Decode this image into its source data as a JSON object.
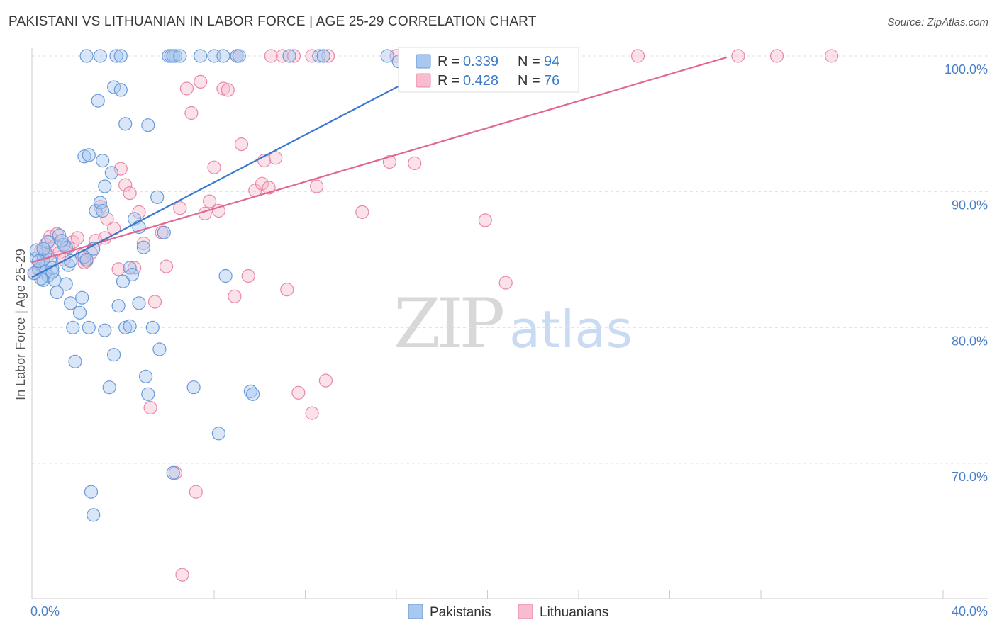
{
  "title": "PAKISTANI VS LITHUANIAN IN LABOR FORCE | AGE 25-29 CORRELATION CHART",
  "source": "Source: ZipAtlas.com",
  "watermark": {
    "zip": "ZIP",
    "atlas": "atlas"
  },
  "colors": {
    "blue_fill": "#a9c8f0",
    "blue_stroke": "#6a9ad8",
    "blue_line": "#3a78d0",
    "pink_fill": "#f7bccd",
    "pink_stroke": "#e888a8",
    "pink_line": "#e06890",
    "grid": "#e0e0e0",
    "axis_label": "#4a7fc8"
  },
  "legend": {
    "rows": [
      {
        "r_label": "R =",
        "r_value": "0.339",
        "n_label": "N =",
        "n_value": "94"
      },
      {
        "r_label": "R =",
        "r_value": "0.428",
        "n_label": "N =",
        "n_value": "76"
      }
    ]
  },
  "bottom_legend": [
    "Pakistanis",
    "Lithuanians"
  ],
  "chart_data": {
    "type": "scatter",
    "xlabel": "",
    "ylabel": "In Labor Force | Age 25-29",
    "xlim": [
      0,
      40
    ],
    "ylim": [
      60,
      100
    ],
    "x_tick_labels": [
      "0.0%",
      "40.0%"
    ],
    "y_tick_labels": [
      "100.0%",
      "90.0%",
      "80.0%",
      "70.0%"
    ],
    "y_ticks": [
      100,
      90,
      80,
      70
    ],
    "series": [
      {
        "name": "Pakistanis",
        "r": 0.339,
        "n": 94,
        "trend": {
          "x": [
            0.0,
            17.5
          ],
          "y": [
            83.7,
            99.0
          ]
        },
        "points": [
          [
            0.2,
            85.1
          ],
          [
            0.3,
            84.3
          ],
          [
            0.4,
            84.6
          ],
          [
            0.5,
            85.0
          ],
          [
            0.6,
            84.1
          ],
          [
            0.7,
            83.8
          ],
          [
            0.8,
            85.0
          ],
          [
            0.5,
            83.5
          ],
          [
            0.6,
            85.5
          ],
          [
            0.9,
            84.4
          ],
          [
            1.0,
            83.5
          ],
          [
            1.1,
            82.6
          ],
          [
            1.2,
            86.8
          ],
          [
            1.4,
            86.1
          ],
          [
            1.5,
            85.9
          ],
          [
            1.6,
            84.6
          ],
          [
            1.7,
            81.8
          ],
          [
            1.8,
            80.0
          ],
          [
            1.9,
            77.5
          ],
          [
            2.1,
            81.1
          ],
          [
            2.2,
            82.2
          ],
          [
            2.3,
            85.2
          ],
          [
            2.4,
            85.0
          ],
          [
            2.5,
            80.0
          ],
          [
            2.7,
            85.8
          ],
          [
            2.8,
            88.6
          ],
          [
            3.0,
            89.2
          ],
          [
            3.1,
            88.6
          ],
          [
            3.2,
            79.8
          ],
          [
            3.4,
            75.6
          ],
          [
            3.6,
            78.0
          ],
          [
            3.8,
            81.6
          ],
          [
            4.0,
            83.4
          ],
          [
            4.1,
            80.0
          ],
          [
            4.3,
            84.4
          ],
          [
            4.5,
            88.0
          ],
          [
            4.7,
            87.4
          ],
          [
            4.9,
            85.9
          ],
          [
            5.0,
            76.4
          ],
          [
            5.1,
            75.1
          ],
          [
            5.3,
            80.0
          ],
          [
            5.5,
            89.6
          ],
          [
            5.6,
            78.4
          ],
          [
            5.8,
            87.0
          ],
          [
            6.2,
            69.3
          ],
          [
            7.1,
            75.6
          ],
          [
            8.2,
            72.2
          ],
          [
            8.5,
            83.8
          ],
          [
            9.0,
            100.0
          ],
          [
            9.6,
            75.3
          ],
          [
            9.7,
            75.1
          ],
          [
            2.9,
            96.7
          ],
          [
            3.6,
            97.7
          ],
          [
            3.9,
            97.5
          ],
          [
            4.1,
            95.0
          ],
          [
            2.3,
            92.6
          ],
          [
            2.5,
            92.7
          ],
          [
            3.1,
            92.3
          ],
          [
            3.5,
            91.4
          ],
          [
            3.2,
            90.4
          ],
          [
            5.1,
            94.9
          ],
          [
            2.4,
            100.0
          ],
          [
            3.0,
            100.0
          ],
          [
            3.7,
            100.0
          ],
          [
            3.9,
            100.0
          ],
          [
            6.0,
            100.0
          ],
          [
            6.3,
            100.0
          ],
          [
            6.1,
            100.0
          ],
          [
            6.2,
            100.0
          ],
          [
            6.5,
            100.0
          ],
          [
            7.4,
            100.0
          ],
          [
            8.0,
            100.0
          ],
          [
            8.4,
            100.0
          ],
          [
            9.1,
            100.0
          ],
          [
            11.3,
            100.0
          ],
          [
            12.6,
            100.0
          ],
          [
            12.8,
            100.0
          ],
          [
            15.6,
            100.0
          ],
          [
            16.1,
            99.6
          ],
          [
            2.6,
            67.9
          ],
          [
            2.7,
            66.2
          ],
          [
            4.3,
            80.1
          ],
          [
            4.7,
            81.8
          ],
          [
            4.4,
            83.9
          ],
          [
            1.5,
            83.2
          ],
          [
            0.9,
            84.1
          ],
          [
            0.2,
            85.7
          ],
          [
            0.3,
            84.9
          ],
          [
            1.3,
            86.4
          ],
          [
            0.4,
            83.6
          ],
          [
            0.7,
            86.3
          ],
          [
            0.5,
            85.8
          ],
          [
            1.7,
            84.9
          ],
          [
            0.1,
            84.0
          ]
        ]
      },
      {
        "name": "Lithuanians",
        "r": 0.428,
        "n": 76,
        "trend": {
          "x": [
            0.0,
            30.5
          ],
          "y": [
            84.8,
            99.9
          ]
        },
        "points": [
          [
            0.1,
            84.0
          ],
          [
            0.3,
            84.3
          ],
          [
            0.4,
            85.7
          ],
          [
            0.6,
            86.1
          ],
          [
            0.8,
            86.7
          ],
          [
            1.0,
            86.0
          ],
          [
            1.2,
            85.5
          ],
          [
            1.4,
            85.0
          ],
          [
            1.6,
            85.9
          ],
          [
            1.8,
            86.3
          ],
          [
            2.0,
            86.6
          ],
          [
            2.2,
            85.3
          ],
          [
            2.4,
            84.9
          ],
          [
            2.6,
            85.5
          ],
          [
            2.8,
            86.4
          ],
          [
            3.0,
            88.9
          ],
          [
            3.2,
            86.6
          ],
          [
            3.3,
            88.0
          ],
          [
            3.6,
            87.3
          ],
          [
            3.8,
            84.3
          ],
          [
            3.9,
            91.7
          ],
          [
            4.1,
            90.5
          ],
          [
            4.3,
            89.9
          ],
          [
            4.5,
            84.4
          ],
          [
            4.7,
            88.5
          ],
          [
            4.9,
            86.2
          ],
          [
            5.2,
            74.1
          ],
          [
            5.4,
            81.9
          ],
          [
            5.7,
            87.0
          ],
          [
            5.9,
            84.5
          ],
          [
            6.3,
            69.3
          ],
          [
            6.5,
            88.8
          ],
          [
            6.6,
            61.8
          ],
          [
            6.8,
            97.6
          ],
          [
            7.0,
            95.8
          ],
          [
            7.2,
            67.9
          ],
          [
            7.4,
            98.1
          ],
          [
            7.6,
            88.4
          ],
          [
            7.8,
            89.3
          ],
          [
            8.0,
            91.8
          ],
          [
            8.2,
            88.6
          ],
          [
            8.4,
            97.6
          ],
          [
            8.6,
            97.5
          ],
          [
            8.9,
            82.3
          ],
          [
            9.2,
            93.5
          ],
          [
            9.5,
            83.8
          ],
          [
            9.8,
            90.1
          ],
          [
            10.1,
            90.6
          ],
          [
            10.2,
            92.3
          ],
          [
            10.4,
            90.3
          ],
          [
            10.7,
            92.5
          ],
          [
            11.2,
            82.8
          ],
          [
            11.7,
            75.2
          ],
          [
            12.3,
            73.7
          ],
          [
            12.5,
            90.4
          ],
          [
            12.9,
            76.1
          ],
          [
            14.5,
            88.5
          ],
          [
            15.7,
            92.2
          ],
          [
            16.8,
            92.1
          ],
          [
            19.9,
            87.9
          ],
          [
            20.8,
            83.3
          ],
          [
            9.0,
            100.0
          ],
          [
            10.5,
            100.0
          ],
          [
            11.0,
            100.0
          ],
          [
            11.5,
            100.0
          ],
          [
            12.3,
            100.0
          ],
          [
            13.0,
            100.0
          ],
          [
            16.0,
            100.0
          ],
          [
            16.5,
            100.0
          ],
          [
            26.6,
            100.0
          ],
          [
            31.0,
            100.0
          ],
          [
            32.7,
            100.0
          ],
          [
            35.1,
            100.0
          ],
          [
            1.1,
            86.9
          ],
          [
            0.7,
            85.3
          ],
          [
            2.3,
            84.8
          ]
        ]
      }
    ]
  }
}
